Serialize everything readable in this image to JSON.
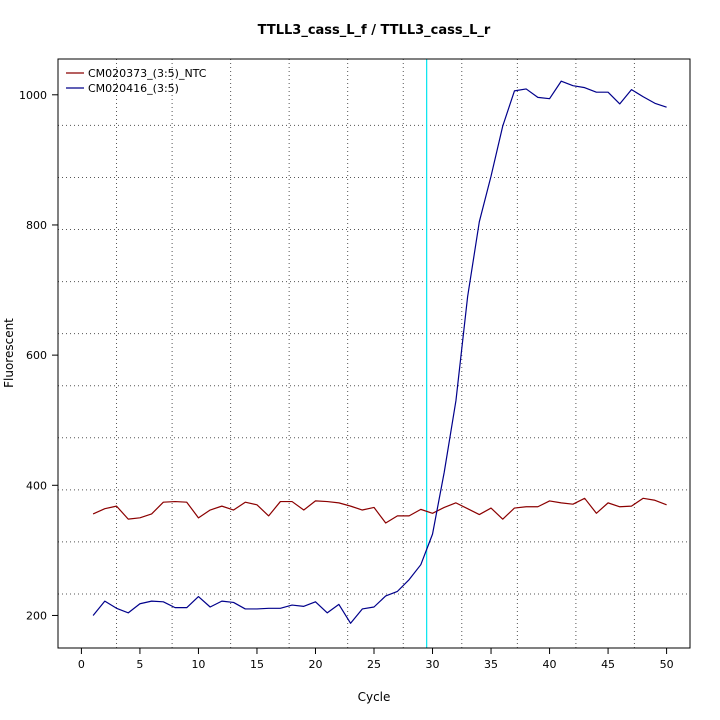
{
  "chart_data": {
    "type": "line",
    "title": "TTLL3_cass_L_f / TTLL3_cass_L_r",
    "xlabel": "Cycle",
    "ylabel": "Fluorescent",
    "xlim": [
      -2,
      52
    ],
    "ylim": [
      150,
      1055
    ],
    "x_ticks": [
      0,
      5,
      10,
      15,
      20,
      25,
      30,
      35,
      40,
      45,
      50
    ],
    "y_ticks": [
      200,
      400,
      600,
      800,
      1000
    ],
    "grid": true,
    "grid_style": "dotted",
    "grid_x": [
      3,
      7.75,
      12.75,
      17.75,
      22.75,
      27.5,
      32.5,
      37.25,
      42.25,
      47.25
    ],
    "grid_y": [
      233,
      313,
      393,
      473,
      553,
      633,
      713,
      793,
      873,
      953
    ],
    "legend_position": "top-left",
    "threshold": {
      "cycle": 29.5,
      "color": "#00e5ee"
    },
    "x": [
      1,
      2,
      3,
      4,
      5,
      6,
      7,
      8,
      9,
      10,
      11,
      12,
      13,
      14,
      15,
      16,
      17,
      18,
      19,
      20,
      21,
      22,
      23,
      24,
      25,
      26,
      27,
      28,
      29,
      30,
      31,
      32,
      33,
      34,
      35,
      36,
      37,
      38,
      39,
      40,
      41,
      42,
      43,
      44,
      45,
      46,
      47,
      48,
      49,
      50
    ],
    "series": [
      {
        "name": "CM020373_(3:5)_NTC",
        "color": "#8b0000",
        "values": [
          356,
          364,
          368,
          348,
          350,
          356,
          374,
          375,
          374,
          350,
          362,
          368,
          362,
          374,
          370,
          353,
          375,
          375,
          362,
          376,
          375,
          373,
          368,
          362,
          366,
          342,
          353,
          353,
          363,
          357,
          366,
          373,
          364,
          355,
          365,
          348,
          365,
          367,
          367,
          376,
          373,
          371,
          380,
          357,
          373,
          367,
          368,
          380,
          377,
          370
        ]
      },
      {
        "name": "CM020416_(3:5)",
        "color": "#00008b",
        "values": [
          200,
          222,
          211,
          204,
          218,
          222,
          221,
          212,
          212,
          229,
          213,
          222,
          220,
          210,
          210,
          211,
          211,
          216,
          214,
          221,
          204,
          217,
          188,
          210,
          213,
          230,
          237,
          255,
          278,
          325,
          420,
          530,
          690,
          805,
          875,
          952,
          1006,
          1009,
          996,
          994,
          1021,
          1014,
          1011,
          1004,
          1004,
          986,
          1008,
          997,
          987,
          981
        ]
      }
    ]
  }
}
